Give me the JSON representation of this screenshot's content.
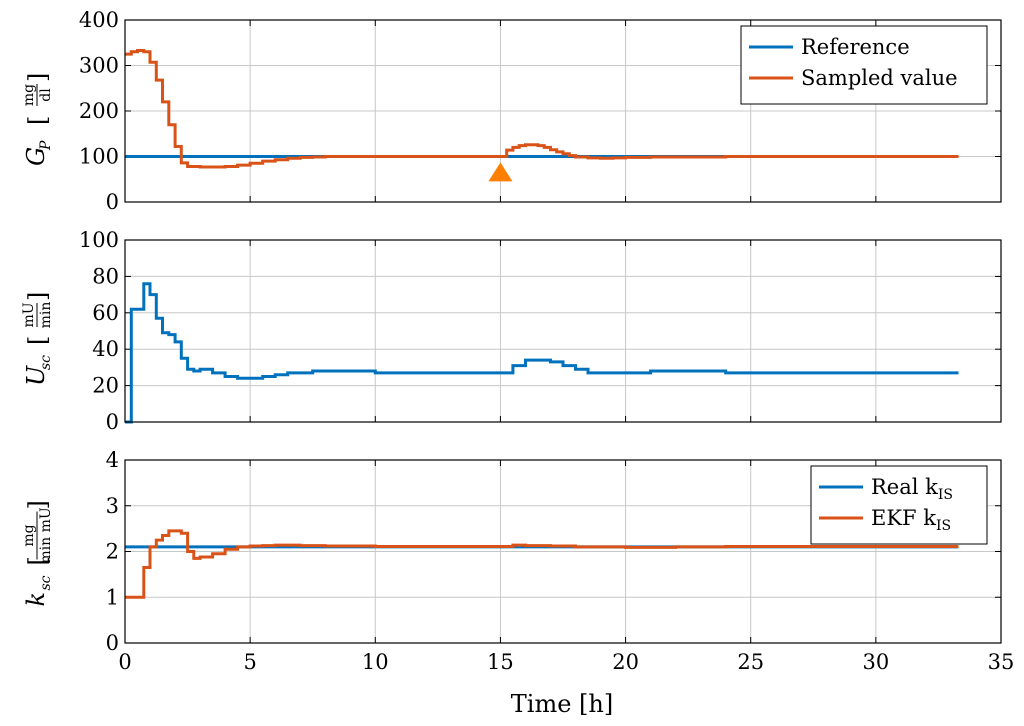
{
  "colors": {
    "blue": "#0072BD",
    "orange": "#D95319",
    "grid": "#c8c8c8"
  },
  "xaxis": {
    "label": "Time [h]",
    "ticks": [
      0,
      5,
      10,
      15,
      20,
      25,
      30,
      35
    ],
    "tick_labels": [
      "0",
      "5",
      "10",
      "15",
      "20",
      "25",
      "30",
      "35"
    ],
    "range": [
      0,
      35
    ]
  },
  "chart_data": [
    {
      "type": "line",
      "ylabel": "G_P [mg/dl]",
      "ylabel_var": "G",
      "ylabel_sub": "P",
      "ylabel_unit_num": "mg",
      "ylabel_unit_den": "dl",
      "ylim": [
        0,
        400
      ],
      "yticks": [
        0,
        100,
        200,
        300,
        400
      ],
      "ytick_labels": [
        "0",
        "100",
        "200",
        "300",
        "400"
      ],
      "grid": true,
      "legend": "top-right",
      "marker": {
        "shape": "triangle-up",
        "x": 15,
        "y": 65
      },
      "series": [
        {
          "name": "Reference",
          "color": "blue",
          "step": false,
          "x": [
            0,
            33.3
          ],
          "y": [
            100,
            100
          ]
        },
        {
          "name": "Sampled value",
          "color": "orange",
          "step": true,
          "x": [
            0,
            0.25,
            0.5,
            0.75,
            1.0,
            1.25,
            1.5,
            1.75,
            2.0,
            2.25,
            2.5,
            3.0,
            3.5,
            4.0,
            4.5,
            5.0,
            5.5,
            6.0,
            6.5,
            7.0,
            7.5,
            8.0,
            9.0,
            10.0,
            12.0,
            14.0,
            15.0,
            15.25,
            15.5,
            15.75,
            16.0,
            16.25,
            16.5,
            16.75,
            17.0,
            17.25,
            17.5,
            17.75,
            18.0,
            18.5,
            19.0,
            19.5,
            20.0,
            21.0,
            22.0,
            24.0,
            26.0,
            28.0,
            30.0,
            33.3
          ],
          "y": [
            325,
            330,
            333,
            330,
            307,
            268,
            220,
            170,
            122,
            86,
            78,
            77,
            77,
            78,
            81,
            85,
            90,
            93,
            96,
            98,
            99,
            100,
            100,
            100,
            100,
            100,
            100,
            114,
            120,
            124,
            126,
            126,
            124,
            120,
            115,
            110,
            106,
            102,
            99,
            97,
            96,
            97,
            98,
            99,
            99,
            100,
            100,
            100,
            100,
            100
          ]
        }
      ]
    },
    {
      "type": "line",
      "ylabel": "U_sc [mU/min]",
      "ylabel_var": "U",
      "ylabel_sub": "sc",
      "ylabel_unit_num": "mU",
      "ylabel_unit_den": "min",
      "ylim": [
        0,
        100
      ],
      "yticks": [
        0,
        20,
        40,
        60,
        80,
        100
      ],
      "ytick_labels": [
        "0",
        "20",
        "40",
        "60",
        "80",
        "100"
      ],
      "grid": true,
      "series": [
        {
          "name": "",
          "color": "blue",
          "step": true,
          "x": [
            0,
            0.25,
            0.5,
            0.75,
            1.0,
            1.25,
            1.5,
            1.75,
            2.0,
            2.25,
            2.5,
            2.75,
            3.0,
            3.5,
            4.0,
            4.5,
            5.0,
            5.5,
            6.0,
            6.5,
            7.0,
            7.5,
            8.0,
            9.0,
            10.0,
            12.0,
            14.0,
            15.5,
            16.0,
            16.5,
            17.0,
            17.5,
            18.0,
            18.5,
            19.0,
            20.0,
            21.0,
            22.0,
            24.0,
            26.0,
            28.0,
            30.0,
            33.3
          ],
          "y": [
            0,
            62,
            62,
            76,
            70,
            57,
            49,
            48,
            44,
            35,
            29,
            28,
            29,
            27,
            25,
            24,
            24,
            25,
            26,
            27,
            27,
            28,
            28,
            28,
            27,
            27,
            27,
            31,
            34,
            34,
            33,
            31,
            29,
            27,
            27,
            27,
            28,
            28,
            27,
            27,
            27,
            27,
            27
          ]
        }
      ]
    },
    {
      "type": "line",
      "ylabel": "k_sc [mg/(min mU)]",
      "ylabel_var": "k",
      "ylabel_sub": "sc",
      "ylabel_unit_num": "mg",
      "ylabel_unit_den": "min mU",
      "ylim": [
        0,
        4
      ],
      "yticks": [
        0,
        1,
        2,
        3,
        4
      ],
      "ytick_labels": [
        "0",
        "1",
        "2",
        "3",
        "4"
      ],
      "grid": true,
      "legend": "top-right",
      "series": [
        {
          "name": "Real k",
          "name_sub": "IS",
          "color": "blue",
          "step": false,
          "x": [
            0,
            33.3
          ],
          "y": [
            2.1,
            2.1
          ]
        },
        {
          "name": "EKF k",
          "name_sub": "IS",
          "color": "orange",
          "step": true,
          "x": [
            0,
            0.25,
            0.5,
            0.75,
            1.0,
            1.25,
            1.5,
            1.75,
            2.0,
            2.25,
            2.5,
            2.75,
            3.0,
            3.5,
            4.0,
            4.5,
            5.0,
            5.5,
            6.0,
            7.0,
            8.0,
            10.0,
            12.0,
            14.0,
            15.5,
            16.0,
            17.0,
            18.0,
            19.0,
            20.0,
            22.0,
            24.0,
            26.0,
            28.0,
            30.0,
            33.3
          ],
          "y": [
            1.0,
            1.0,
            1.0,
            1.65,
            2.1,
            2.25,
            2.35,
            2.45,
            2.45,
            2.4,
            2.0,
            1.85,
            1.88,
            1.95,
            2.05,
            2.1,
            2.12,
            2.13,
            2.14,
            2.13,
            2.12,
            2.11,
            2.11,
            2.11,
            2.14,
            2.13,
            2.12,
            2.1,
            2.1,
            2.09,
            2.1,
            2.11,
            2.11,
            2.11,
            2.11,
            2.11
          ]
        }
      ]
    }
  ]
}
